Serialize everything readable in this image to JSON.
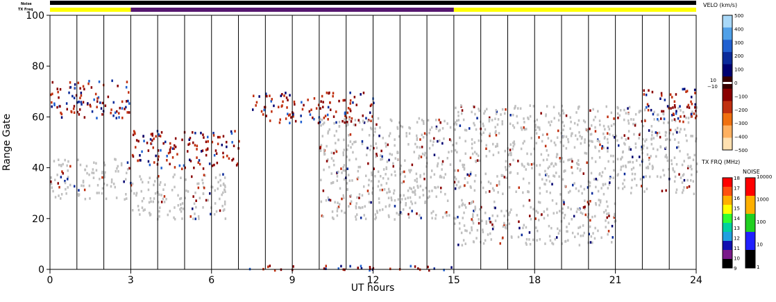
{
  "chart_data": {
    "type": "heatmap",
    "title": "",
    "xlabel": "UT hours",
    "ylabel": "Range Gate",
    "xlim": [
      0,
      24
    ],
    "ylim": [
      0,
      100
    ],
    "x_ticks": [
      "0",
      "3",
      "6",
      "9",
      "12",
      "15",
      "18",
      "21",
      "24"
    ],
    "y_ticks": [
      "0",
      "20",
      "40",
      "60",
      "80",
      "100"
    ],
    "scan_boundaries_ut": [
      0,
      1,
      2,
      3,
      4,
      5,
      6,
      7,
      8,
      9,
      10,
      11,
      12,
      13,
      14,
      15,
      16,
      17,
      18,
      19,
      20,
      21,
      22,
      23,
      24
    ],
    "strips": {
      "noise_label": "Noise",
      "txfreq_label": "TX Freq",
      "noise_color": "#000000",
      "txfreq_segments": [
        {
          "start": 0,
          "end": 3,
          "color": "#ffff00"
        },
        {
          "start": 3,
          "end": 15,
          "color": "#55166e"
        },
        {
          "start": 15,
          "end": 24,
          "color": "#ffff00"
        }
      ]
    },
    "ground_scatter_color": "#c0c0c0",
    "echo_bands": [
      {
        "name": "",
        "kind": "ground",
        "t": [
          0,
          3
        ],
        "g": [
          28,
          44
        ]
      },
      {
        "name": "",
        "kind": "ionospheric",
        "t": [
          0,
          3
        ],
        "g": [
          60,
          75
        ]
      },
      {
        "name": "",
        "kind": "ground",
        "t": [
          3,
          6.5
        ],
        "g": [
          20,
          38
        ]
      },
      {
        "name": "",
        "kind": "ionospheric",
        "t": [
          3,
          7
        ],
        "g": [
          40,
          55
        ]
      },
      {
        "name": "",
        "kind": "ionospheric",
        "t": [
          7.5,
          12
        ],
        "g": [
          58,
          70
        ]
      },
      {
        "name": "",
        "kind": "ground",
        "t": [
          10,
          15
        ],
        "g": [
          20,
          60
        ]
      },
      {
        "name": "",
        "kind": "ground",
        "t": [
          15,
          24
        ],
        "g": [
          30,
          65
        ]
      },
      {
        "name": "",
        "kind": "ground",
        "t": [
          15,
          21
        ],
        "g": [
          10,
          28
        ]
      },
      {
        "name": "",
        "kind": "ionospheric",
        "t": [
          22,
          24
        ],
        "g": [
          58,
          72
        ]
      },
      {
        "name": "",
        "kind": "ionospheric",
        "t": [
          7,
          15
        ],
        "g": [
          0,
          2
        ]
      }
    ],
    "velo_colorbar": {
      "title": "VELO (km/s)",
      "ticks": [
        "500",
        "400",
        "300",
        "200",
        "100",
        "0",
        "−100",
        "−200",
        "−300",
        "−400",
        "−500"
      ],
      "inner_ticks": [
        "10",
        "−10"
      ],
      "range": [
        -500,
        500
      ],
      "colors": [
        "#ffe0b0",
        "#ffb060",
        "#f07010",
        "#c03010",
        "#8a0000",
        "#3a0000",
        "#000070",
        "#0a2a9a",
        "#2060d0",
        "#50a0e8",
        "#a8d8f8"
      ]
    },
    "txfreq_colorbar": {
      "title": "TX FRQ (MHz)",
      "ticks": [
        "9",
        "10",
        "11",
        "12",
        "13",
        "14",
        "15",
        "16",
        "17",
        "18"
      ],
      "colors": [
        "#000000",
        "#7a1a8a",
        "#1010b0",
        "#20a0e0",
        "#00d0a0",
        "#30ff30",
        "#ffff00",
        "#ffb000",
        "#ff5010",
        "#ff0000"
      ]
    },
    "noise_colorbar": {
      "title": "NOISE",
      "ticks": [
        "1",
        "10",
        "100",
        "1000",
        "10000"
      ],
      "colors": [
        "#000000",
        "#2020ff",
        "#20d020",
        "#ffb000",
        "#ff0000"
      ]
    }
  }
}
